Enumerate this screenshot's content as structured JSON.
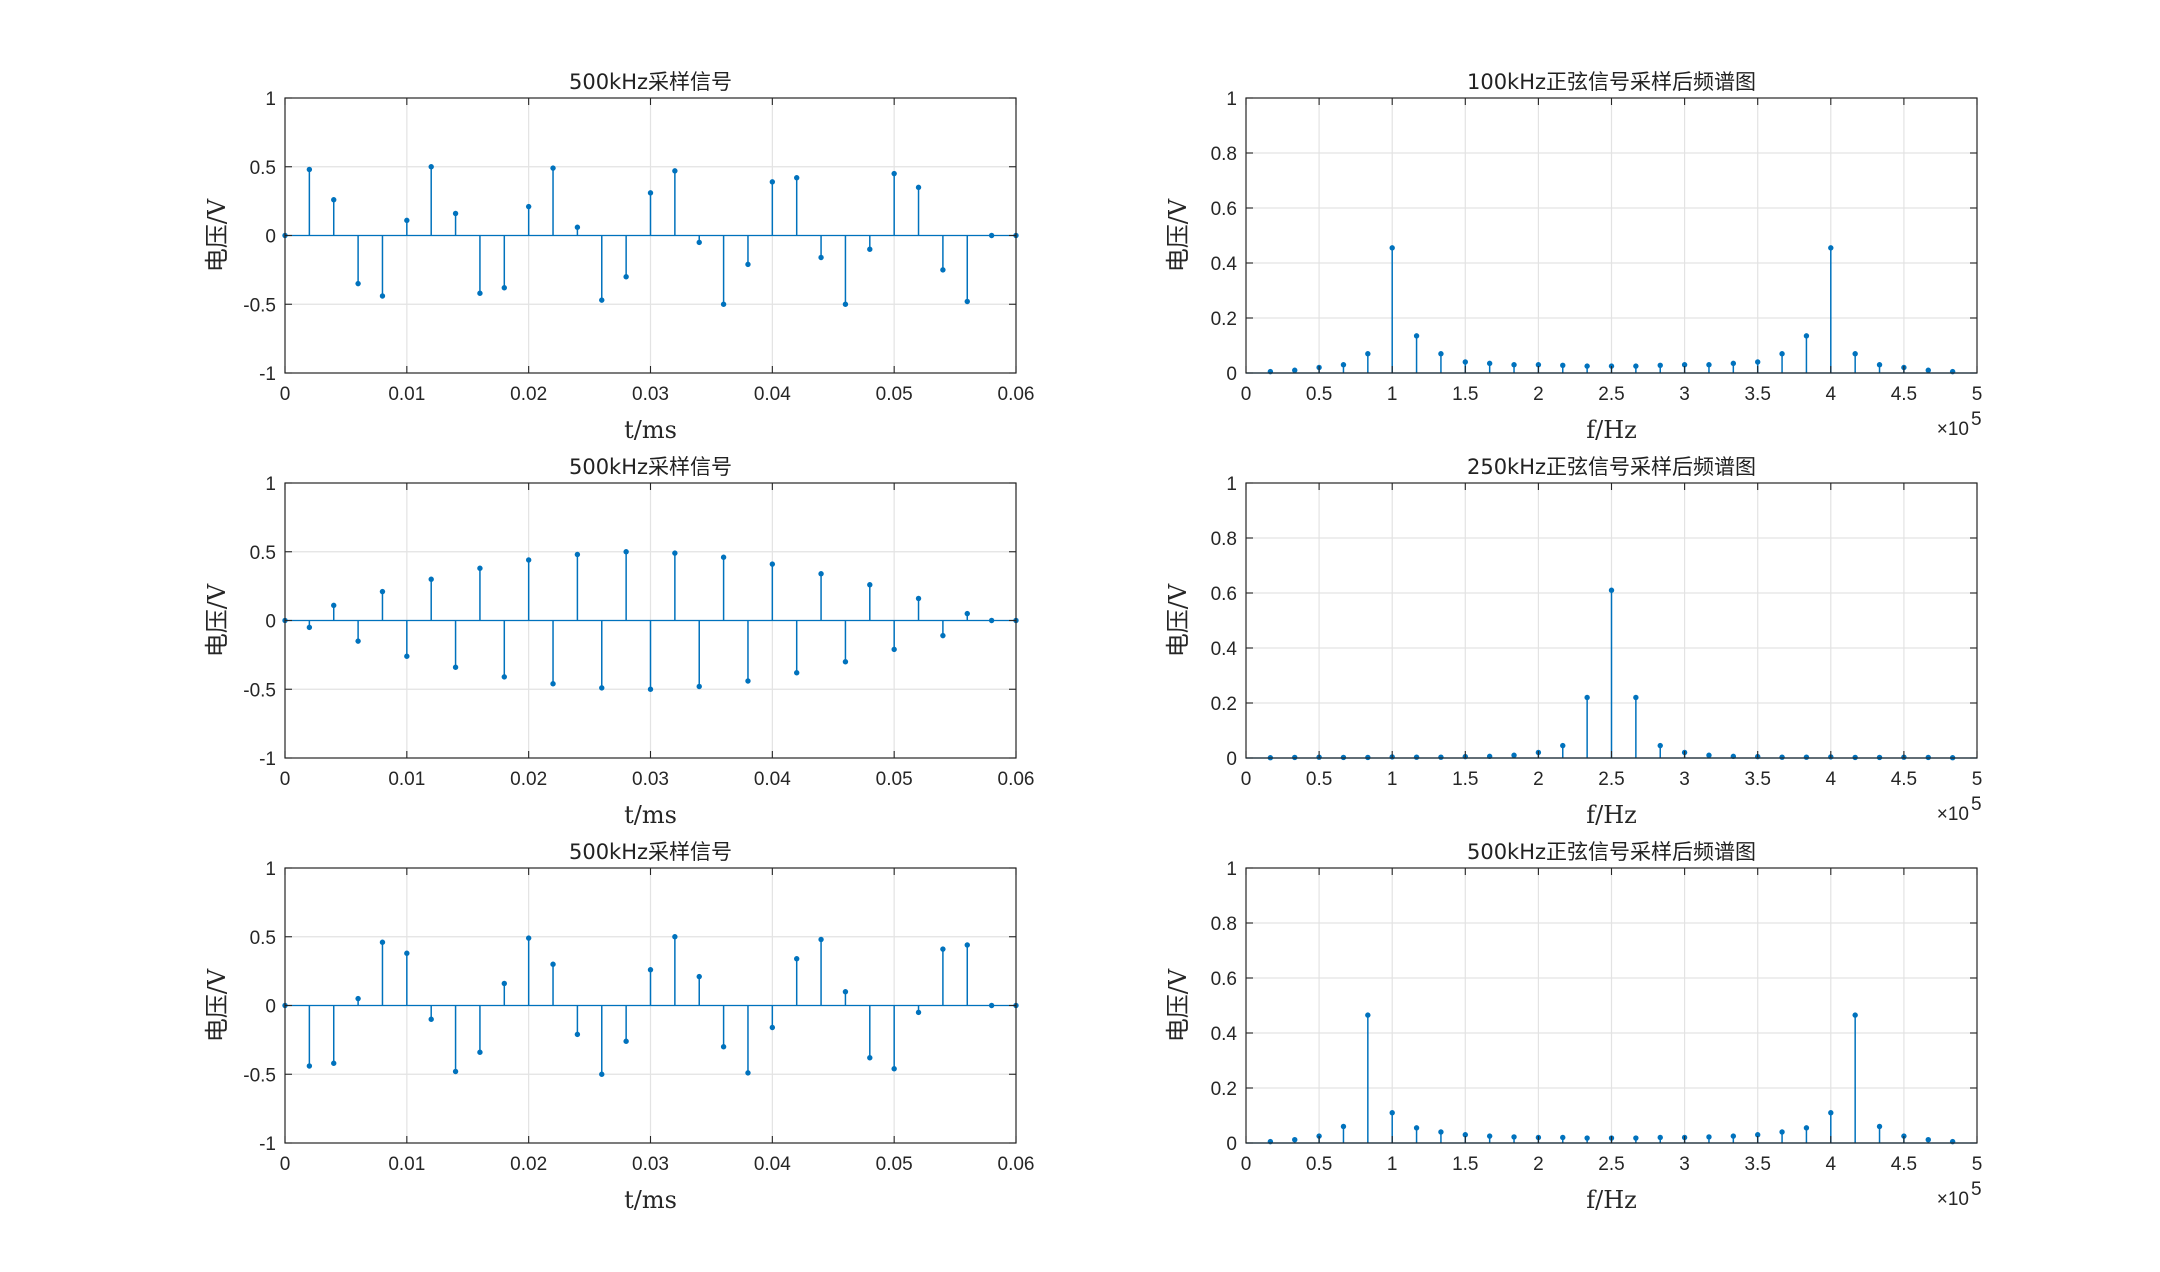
{
  "colors": {
    "series": "#0072bd",
    "axis": "#262626",
    "grid": "#e3e3e3"
  },
  "chart_data": [
    {
      "type": "stem",
      "title": "500kHz采样信号",
      "xlabel": "t/ms",
      "ylabel": "电压/V",
      "xlim": [
        0,
        0.06
      ],
      "ylim": [
        -1,
        1
      ],
      "xticks": [
        0,
        0.01,
        0.02,
        0.03,
        0.04,
        0.05,
        0.06
      ],
      "xtick_labels": [
        "0",
        "0.01",
        "0.02",
        "0.03",
        "0.04",
        "0.05",
        "0.06"
      ],
      "yticks": [
        -1,
        -0.5,
        0,
        0.5,
        1
      ],
      "ytick_labels": [
        "-1",
        "-0.5",
        "0",
        "0.5",
        "1"
      ],
      "grid": true,
      "x": [
        0,
        0.002,
        0.004,
        0.006,
        0.008,
        0.01,
        0.012,
        0.014,
        0.016,
        0.018,
        0.02,
        0.022,
        0.024,
        0.026,
        0.028,
        0.03,
        0.032,
        0.034,
        0.036,
        0.038,
        0.04,
        0.042,
        0.044,
        0.046,
        0.048,
        0.05,
        0.052,
        0.054,
        0.056,
        0.058,
        0.06
      ],
      "y": [
        0,
        0.48,
        0.26,
        -0.35,
        -0.44,
        0.11,
        0.5,
        0.16,
        -0.42,
        -0.38,
        0.21,
        0.49,
        0.06,
        -0.47,
        -0.3,
        0.31,
        0.47,
        -0.05,
        -0.5,
        -0.21,
        0.39,
        0.42,
        -0.16,
        -0.5,
        -0.1,
        0.45,
        0.35,
        -0.25,
        -0.48,
        0,
        0
      ]
    },
    {
      "type": "stem",
      "title": "100kHz正弦信号采样后频谱图",
      "xlabel": "f/Hz",
      "ylabel": "电压/V",
      "xlim": [
        0,
        500000
      ],
      "ylim": [
        0,
        1
      ],
      "xticks": [
        0,
        50000,
        100000,
        150000,
        200000,
        250000,
        300000,
        350000,
        400000,
        450000,
        500000
      ],
      "xtick_labels": [
        "0",
        "0.5",
        "1",
        "1.5",
        "2",
        "2.5",
        "3",
        "3.5",
        "4",
        "4.5",
        "5"
      ],
      "yticks": [
        0,
        0.2,
        0.4,
        0.6,
        0.8,
        1
      ],
      "ytick_labels": [
        "0",
        "0.2",
        "0.4",
        "0.6",
        "0.8",
        "1"
      ],
      "x_exponent": {
        "base": "×10",
        "power": "5"
      },
      "grid": true,
      "x": [
        16667,
        33333,
        50000,
        66667,
        83333,
        100000,
        116667,
        133333,
        150000,
        166667,
        183333,
        200000,
        216667,
        233333,
        250000,
        266667,
        283333,
        300000,
        316667,
        333333,
        350000,
        366667,
        383333,
        400000,
        416667,
        433333,
        450000,
        466667,
        483333
      ],
      "y": [
        0.005,
        0.01,
        0.02,
        0.03,
        0.07,
        0.455,
        0.135,
        0.07,
        0.04,
        0.035,
        0.03,
        0.03,
        0.028,
        0.025,
        0.025,
        0.025,
        0.028,
        0.03,
        0.03,
        0.035,
        0.04,
        0.07,
        0.135,
        0.455,
        0.07,
        0.03,
        0.02,
        0.01,
        0.005
      ]
    },
    {
      "type": "stem",
      "title": "500kHz采样信号",
      "xlabel": "t/ms",
      "ylabel": "电压/V",
      "xlim": [
        0,
        0.06
      ],
      "ylim": [
        -1,
        1
      ],
      "xticks": [
        0,
        0.01,
        0.02,
        0.03,
        0.04,
        0.05,
        0.06
      ],
      "xtick_labels": [
        "0",
        "0.01",
        "0.02",
        "0.03",
        "0.04",
        "0.05",
        "0.06"
      ],
      "yticks": [
        -1,
        -0.5,
        0,
        0.5,
        1
      ],
      "ytick_labels": [
        "-1",
        "-0.5",
        "0",
        "0.5",
        "1"
      ],
      "grid": true,
      "x": [
        0,
        0.002,
        0.004,
        0.006,
        0.008,
        0.01,
        0.012,
        0.014,
        0.016,
        0.018,
        0.02,
        0.022,
        0.024,
        0.026,
        0.028,
        0.03,
        0.032,
        0.034,
        0.036,
        0.038,
        0.04,
        0.042,
        0.044,
        0.046,
        0.048,
        0.05,
        0.052,
        0.054,
        0.056,
        0.058,
        0.06
      ],
      "y": [
        0,
        -0.05,
        0.11,
        -0.15,
        0.21,
        -0.26,
        0.3,
        -0.34,
        0.38,
        -0.41,
        0.44,
        -0.46,
        0.48,
        -0.49,
        0.5,
        -0.5,
        0.49,
        -0.48,
        0.46,
        -0.44,
        0.41,
        -0.38,
        0.34,
        -0.3,
        0.26,
        -0.21,
        0.16,
        -0.11,
        0.05,
        0,
        0
      ]
    },
    {
      "type": "stem",
      "title": "250kHz正弦信号采样后频谱图",
      "xlabel": "f/Hz",
      "ylabel": "电压/V",
      "xlim": [
        0,
        500000
      ],
      "ylim": [
        0,
        1
      ],
      "xticks": [
        0,
        50000,
        100000,
        150000,
        200000,
        250000,
        300000,
        350000,
        400000,
        450000,
        500000
      ],
      "xtick_labels": [
        "0",
        "0.5",
        "1",
        "1.5",
        "2",
        "2.5",
        "3",
        "3.5",
        "4",
        "4.5",
        "5"
      ],
      "yticks": [
        0,
        0.2,
        0.4,
        0.6,
        0.8,
        1
      ],
      "ytick_labels": [
        "0",
        "0.2",
        "0.4",
        "0.6",
        "0.8",
        "1"
      ],
      "x_exponent": {
        "base": "×10",
        "power": "5"
      },
      "grid": true,
      "x": [
        16667,
        33333,
        50000,
        66667,
        83333,
        100000,
        116667,
        133333,
        150000,
        166667,
        183333,
        200000,
        216667,
        233333,
        250000,
        266667,
        283333,
        300000,
        316667,
        333333,
        350000,
        366667,
        383333,
        400000,
        416667,
        433333,
        450000,
        466667,
        483333
      ],
      "y": [
        0.001,
        0.002,
        0.003,
        0.002,
        0.002,
        0.004,
        0.003,
        0.003,
        0.005,
        0.006,
        0.01,
        0.02,
        0.045,
        0.22,
        0.61,
        0.22,
        0.045,
        0.02,
        0.01,
        0.006,
        0.005,
        0.003,
        0.003,
        0.004,
        0.002,
        0.002,
        0.003,
        0.002,
        0.001
      ]
    },
    {
      "type": "stem",
      "title": "500kHz采样信号",
      "xlabel": "t/ms",
      "ylabel": "电压/V",
      "xlim": [
        0,
        0.06
      ],
      "ylim": [
        -1,
        1
      ],
      "xticks": [
        0,
        0.01,
        0.02,
        0.03,
        0.04,
        0.05,
        0.06
      ],
      "xtick_labels": [
        "0",
        "0.01",
        "0.02",
        "0.03",
        "0.04",
        "0.05",
        "0.06"
      ],
      "yticks": [
        -1,
        -0.5,
        0,
        0.5,
        1
      ],
      "ytick_labels": [
        "-1",
        "-0.5",
        "0",
        "0.5",
        "1"
      ],
      "grid": true,
      "x": [
        0,
        0.002,
        0.004,
        0.006,
        0.008,
        0.01,
        0.012,
        0.014,
        0.016,
        0.018,
        0.02,
        0.022,
        0.024,
        0.026,
        0.028,
        0.03,
        0.032,
        0.034,
        0.036,
        0.038,
        0.04,
        0.042,
        0.044,
        0.046,
        0.048,
        0.05,
        0.052,
        0.054,
        0.056,
        0.058,
        0.06
      ],
      "y": [
        0,
        -0.44,
        -0.42,
        0.05,
        0.46,
        0.38,
        -0.1,
        -0.48,
        -0.34,
        0.16,
        0.49,
        0.3,
        -0.21,
        -0.5,
        -0.26,
        0.26,
        0.5,
        0.21,
        -0.3,
        -0.49,
        -0.16,
        0.34,
        0.48,
        0.1,
        -0.38,
        -0.46,
        -0.05,
        0.41,
        0.44,
        0,
        0
      ]
    },
    {
      "type": "stem",
      "title": "500kHz正弦信号采样后频谱图",
      "xlabel": "f/Hz",
      "ylabel": "电压/V",
      "xlim": [
        0,
        500000
      ],
      "ylim": [
        0,
        1
      ],
      "xticks": [
        0,
        50000,
        100000,
        150000,
        200000,
        250000,
        300000,
        350000,
        400000,
        450000,
        500000
      ],
      "xtick_labels": [
        "0",
        "0.5",
        "1",
        "1.5",
        "2",
        "2.5",
        "3",
        "3.5",
        "4",
        "4.5",
        "5"
      ],
      "yticks": [
        0,
        0.2,
        0.4,
        0.6,
        0.8,
        1
      ],
      "ytick_labels": [
        "0",
        "0.2",
        "0.4",
        "0.6",
        "0.8",
        "1"
      ],
      "x_exponent": {
        "base": "×10",
        "power": "5"
      },
      "grid": true,
      "x": [
        16667,
        33333,
        50000,
        66667,
        83333,
        100000,
        116667,
        133333,
        150000,
        166667,
        183333,
        200000,
        216667,
        233333,
        250000,
        266667,
        283333,
        300000,
        316667,
        333333,
        350000,
        366667,
        383333,
        400000,
        416667,
        433333,
        450000,
        466667,
        483333
      ],
      "y": [
        0.005,
        0.012,
        0.025,
        0.06,
        0.465,
        0.11,
        0.055,
        0.04,
        0.03,
        0.025,
        0.022,
        0.02,
        0.02,
        0.018,
        0.018,
        0.018,
        0.02,
        0.02,
        0.022,
        0.025,
        0.03,
        0.04,
        0.055,
        0.11,
        0.465,
        0.06,
        0.025,
        0.012,
        0.005
      ]
    }
  ]
}
